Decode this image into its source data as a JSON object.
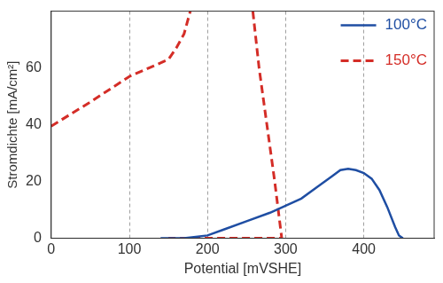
{
  "chart_data": {
    "type": "line",
    "x_label": "Potential [mVSHE]",
    "y_label": "Stromdichte [mA/cm²]",
    "xlim": [
      0,
      490
    ],
    "xticks": [
      0,
      100,
      200,
      300,
      400
    ],
    "ylim": [
      0,
      80
    ],
    "yticks": [
      0,
      20,
      40,
      60
    ],
    "grid": "x",
    "legend": "top-right",
    "series": [
      {
        "name": "100°C",
        "color": "#1f4ea3",
        "line_style": "solid",
        "x": [
          140,
          170,
          200,
          220,
          250,
          280,
          300,
          320,
          340,
          360,
          370,
          380,
          390,
          400,
          410,
          420,
          430,
          440,
          445,
          450
        ],
        "values": [
          0,
          0,
          1,
          3,
          6,
          9,
          11.5,
          14,
          18,
          22,
          24,
          24.5,
          24,
          23,
          21,
          17,
          11,
          4,
          1,
          0
        ]
      },
      {
        "name": "150°C",
        "color": "#d42d27",
        "line_style": "dashed",
        "x": [
          0,
          50,
          100,
          150,
          160,
          170,
          178,
          218,
          258,
          266,
          276,
          286,
          295,
          250,
          200,
          150
        ],
        "values": [
          39.5,
          48,
          57,
          63,
          67,
          72,
          80,
          null,
          80,
          60,
          40,
          20,
          0,
          0,
          0,
          0
        ]
      }
    ]
  }
}
